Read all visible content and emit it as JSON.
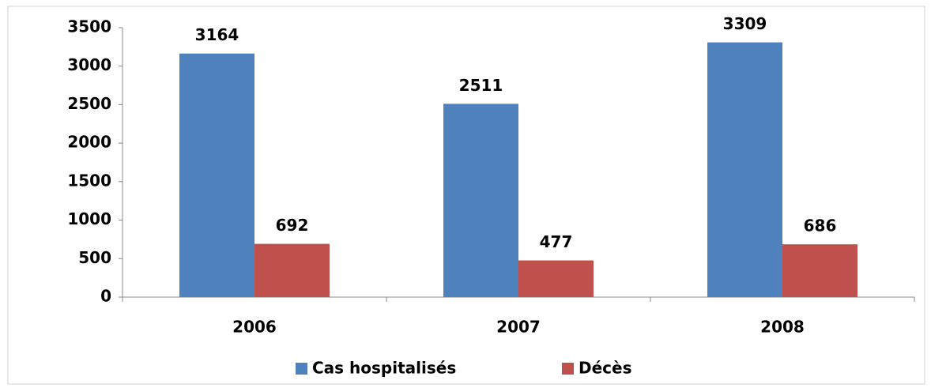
{
  "chart_data": {
    "type": "bar",
    "categories": [
      "2006",
      "2007",
      "2008"
    ],
    "series": [
      {
        "name": "Cas hospitalisés",
        "color": "#4f81bd",
        "values": [
          3164,
          2511,
          3309
        ]
      },
      {
        "name": "Décès",
        "color": "#c0504d",
        "values": [
          692,
          477,
          686
        ]
      }
    ],
    "ylim": [
      0,
      3500
    ],
    "yticks": [
      0,
      500,
      1000,
      1500,
      2000,
      2500,
      3000,
      3500
    ],
    "grid": false,
    "legend": "bottom",
    "data_labels": true
  }
}
